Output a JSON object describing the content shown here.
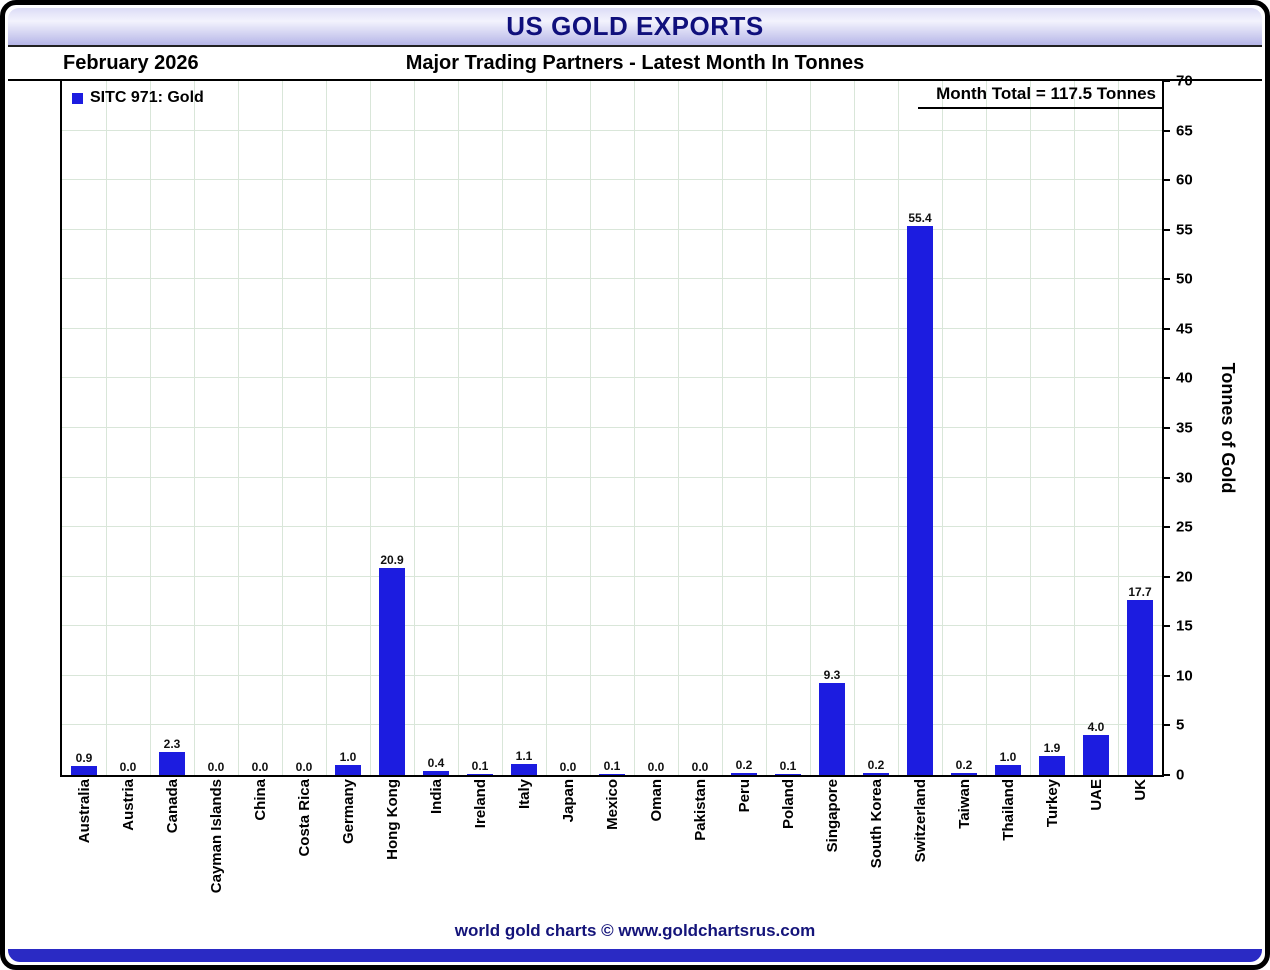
{
  "header": {
    "title": "US GOLD EXPORTS",
    "date": "February 2026",
    "subtitle": "Major Trading Partners - Latest Month In Tonnes",
    "month_total": "Month Total = 117.5 Tonnes"
  },
  "legend": {
    "label": "SITC 971: Gold",
    "swatch_color": "#1c1ce0"
  },
  "footer": {
    "text": "world gold charts © www.goldchartsrus.com"
  },
  "colors": {
    "bar": "#1c1ce0",
    "bottom_bar": "#2a2ac4",
    "title_text": "#10107c",
    "grid": "#d9e6d9"
  },
  "chart_data": {
    "type": "bar",
    "title": "US GOLD EXPORTS",
    "subtitle": "Major Trading Partners - Latest Month In Tonnes",
    "month_label": "February 2026",
    "month_total_tonnes": 117.5,
    "series_name": "SITC 971: Gold",
    "categories": [
      "Australia",
      "Austria",
      "Canada",
      "Cayman Islands",
      "China",
      "Costa Rica",
      "Germany",
      "Hong Kong",
      "India",
      "Ireland",
      "Italy",
      "Japan",
      "Mexico",
      "Oman",
      "Pakistan",
      "Peru",
      "Poland",
      "Singapore",
      "South Korea",
      "Switzerland",
      "Taiwan",
      "Thailand",
      "Turkey",
      "UAE",
      "UK"
    ],
    "values": [
      0.9,
      0.0,
      2.3,
      0.0,
      0.0,
      0.0,
      1.0,
      20.9,
      0.4,
      0.1,
      1.1,
      0.0,
      0.1,
      0.0,
      0.0,
      0.2,
      0.1,
      9.3,
      0.2,
      55.4,
      0.2,
      1.0,
      1.9,
      4.0,
      17.7
    ],
    "xlabel": "",
    "ylabel": "Tonnes of Gold",
    "ylim": [
      0,
      70
    ],
    "ytick_step": 5,
    "grid": true,
    "legend_position": "top-left",
    "value_labels": true
  }
}
